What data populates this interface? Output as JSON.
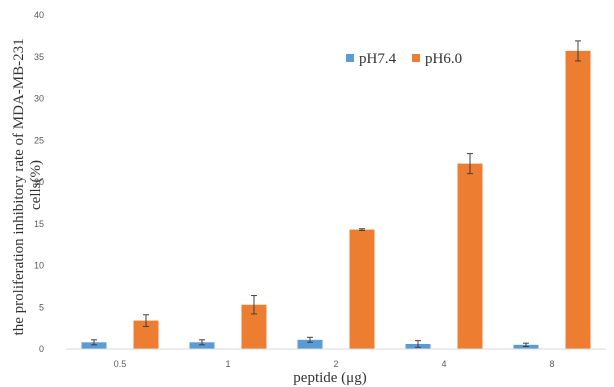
{
  "chart_data": {
    "type": "bar",
    "xlabel": "peptide (μg)",
    "ylabel_lines": [
      "the proliferation inhibitory rate of MDA-MB-231",
      "cells(%)"
    ],
    "categories": [
      "0.5",
      "1",
      "2",
      "4",
      "8"
    ],
    "ylim": [
      0,
      40
    ],
    "yticks": [
      0,
      5,
      10,
      15,
      20,
      25,
      30,
      35,
      40
    ],
    "grid": false,
    "legend_position": "top-right",
    "series": [
      {
        "name": "pH7.4",
        "color": "#5b9bd5",
        "values": [
          0.8,
          0.8,
          1.1,
          0.6,
          0.5
        ],
        "errors": [
          0.3,
          0.3,
          0.3,
          0.4,
          0.2
        ]
      },
      {
        "name": "pH6.0",
        "color": "#ed7d31",
        "values": [
          3.4,
          5.3,
          14.3,
          22.2,
          35.7
        ],
        "errors": [
          0.7,
          1.1,
          0.1,
          1.2,
          1.2
        ]
      }
    ]
  }
}
